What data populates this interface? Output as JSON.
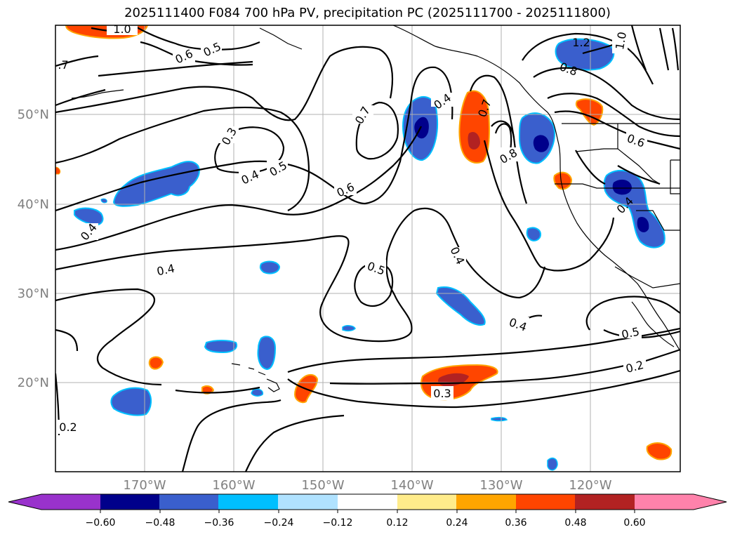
{
  "title": "2025111400 F084 700 hPa PV, precipitation PC (2025111700 - 2025111800)",
  "map": {
    "lat_ticks": [
      "50°N",
      "40°N",
      "30°N",
      "20°N"
    ],
    "lon_ticks": [
      "170°W",
      "160°W",
      "150°W",
      "140°W",
      "130°W",
      "120°W"
    ],
    "contour_labels": [
      {
        "id": "pv-label-1",
        "text": "1.0"
      },
      {
        "id": "pv-label-2",
        "text": "0.6"
      },
      {
        "id": "pv-label-3",
        "text": "0.5"
      },
      {
        "id": "pv-label-4",
        "text": ".7"
      },
      {
        "id": "pv-label-5",
        "text": "0.3"
      },
      {
        "id": "pv-label-6",
        "text": "0.4"
      },
      {
        "id": "pv-label-7",
        "text": "0.5"
      },
      {
        "id": "pv-label-8",
        "text": "0.7"
      },
      {
        "id": "pv-label-9",
        "text": "0.4"
      },
      {
        "id": "pv-label-10",
        "text": "0.6"
      },
      {
        "id": "pv-label-11",
        "text": "0.7"
      },
      {
        "id": "pv-label-12",
        "text": "0.8"
      },
      {
        "id": "pv-label-13",
        "text": "1.2"
      },
      {
        "id": "pv-label-14",
        "text": "1.0"
      },
      {
        "id": "pv-label-15",
        "text": "0.8"
      },
      {
        "id": "pv-label-16",
        "text": "0.6"
      },
      {
        "id": "pv-label-17",
        "text": "0.4"
      },
      {
        "id": "pv-label-18",
        "text": "0.4"
      },
      {
        "id": "pv-label-19",
        "text": "0.4"
      },
      {
        "id": "pv-label-20",
        "text": "0.5"
      },
      {
        "id": "pv-label-21",
        "text": "0.4"
      },
      {
        "id": "pv-label-22",
        "text": "0.4"
      },
      {
        "id": "pv-label-23",
        "text": "0.5"
      },
      {
        "id": "pv-label-24",
        "text": "0.2"
      },
      {
        "id": "pv-label-25",
        "text": "0.3"
      },
      {
        "id": "pv-label-26",
        "text": "0.2"
      }
    ]
  },
  "colorbar": {
    "ticks": [
      "−0.60",
      "−0.48",
      "−0.36",
      "−0.24",
      "−0.12",
      "0.12",
      "0.24",
      "0.36",
      "0.48",
      "0.60"
    ],
    "colors": [
      "#9932cc",
      "#00008b",
      "#3a5fcd",
      "#00bfff",
      "#b0e2ff",
      "#ffffff",
      "#ffec8b",
      "#ffa500",
      "#ff4500",
      "#b22222",
      "#ff82ab"
    ]
  },
  "colors": {
    "neg_strong": "#00008b",
    "neg_mid": "#3a5fcd",
    "neg_light": "#00bfff",
    "pos_strong": "#b22222",
    "pos_mid": "#ff4500",
    "pos_light": "#ffa500",
    "pos_faint": "#ffec8b",
    "grid": "#b0b0b0",
    "tick_text": "#808080"
  }
}
